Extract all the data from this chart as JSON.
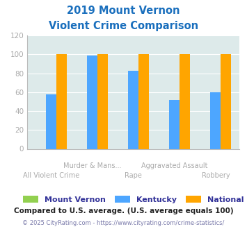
{
  "title_line1": "2019 Mount Vernon",
  "title_line2": "Violent Crime Comparison",
  "categories": [
    "All Violent Crime",
    "Murder & Mans...",
    "Rape",
    "Aggravated Assault",
    "Robbery"
  ],
  "series": {
    "Mount Vernon": [
      0,
      0,
      0,
      0,
      0
    ],
    "Kentucky": [
      58,
      99,
      83,
      52,
      60
    ],
    "National": [
      100,
      100,
      100,
      100,
      100
    ]
  },
  "colors": {
    "Mount Vernon": "#92d050",
    "Kentucky": "#4da6ff",
    "National": "#ffa500"
  },
  "ylim": [
    0,
    120
  ],
  "yticks": [
    0,
    20,
    40,
    60,
    80,
    100,
    120
  ],
  "title_color": "#1a6fbd",
  "axis_bg_color": "#ddeaea",
  "fig_bg_color": "#ffffff",
  "footnote1": "Compared to U.S. average. (U.S. average equals 100)",
  "footnote2": "© 2025 CityRating.com - https://www.cityrating.com/crime-statistics/",
  "footnote1_color": "#222222",
  "footnote2_color": "#7a7aaa",
  "grid_color": "#ffffff",
  "tick_label_color": "#aaaaaa",
  "legend_text_color": "#333399"
}
